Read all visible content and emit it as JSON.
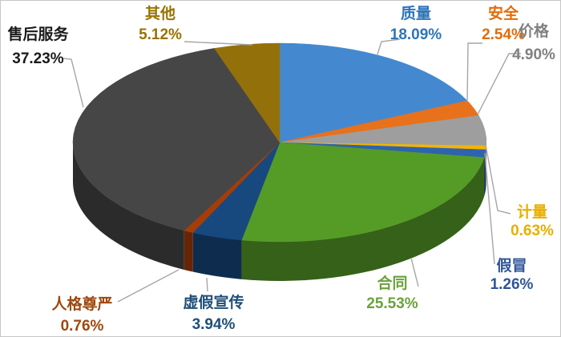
{
  "chart_data": {
    "type": "pie",
    "style": "3d",
    "title": "",
    "legend": "none",
    "background": "#FFFFFF",
    "frame_border_color": "#C6C6C6",
    "leader_line_color": "#A6A6A6",
    "start_angle_deg": 0,
    "direction": "clockwise",
    "categories": [
      "质量",
      "安全",
      "价格",
      "计量",
      "假冒",
      "合同",
      "虚假宣传",
      "人格尊严",
      "售后服务",
      "其他"
    ],
    "values": [
      18.09,
      2.54,
      4.9,
      0.63,
      1.26,
      25.53,
      3.94,
      0.76,
      37.23,
      5.12
    ],
    "slices": [
      {
        "id": "quality",
        "name": "质量",
        "pct": "18.09%",
        "value": 18.09,
        "color": "#4489CF",
        "label_color": "#2E75B6"
      },
      {
        "id": "safety",
        "name": "安全",
        "pct": "2.54%",
        "value": 2.54,
        "color": "#E8711C",
        "label_color": "#E36C0A"
      },
      {
        "id": "price",
        "name": "价格",
        "pct": "4.90%",
        "value": 4.9,
        "color": "#9E9E9E",
        "label_color": "#808080"
      },
      {
        "id": "measurement",
        "name": "计量",
        "pct": "0.63%",
        "value": 0.63,
        "color": "#F2B500",
        "label_color": "#E8AF00"
      },
      {
        "id": "counterfeit",
        "name": "假冒",
        "pct": "1.26%",
        "value": 1.26,
        "color": "#2E63B0",
        "label_color": "#2F5597"
      },
      {
        "id": "contract",
        "name": "合同",
        "pct": "25.53%",
        "value": 25.53,
        "color": "#559C27",
        "label_color": "#6AA23C"
      },
      {
        "id": "false-advertising",
        "name": "虚假宣传",
        "pct": "3.94%",
        "value": 3.94,
        "color": "#17497E",
        "label_color": "#1F4E79"
      },
      {
        "id": "personal-dignity",
        "name": "人格尊严",
        "pct": "0.76%",
        "value": 0.76,
        "color": "#A63C08",
        "label_color": "#9E480E"
      },
      {
        "id": "after-sales-service",
        "name": "售后服务",
        "pct": "37.23%",
        "value": 37.23,
        "color": "#464646",
        "label_color": "#1A1A1A"
      },
      {
        "id": "other",
        "name": "其他",
        "pct": "5.12%",
        "value": 5.12,
        "color": "#94700A",
        "label_color": "#997300"
      }
    ]
  }
}
